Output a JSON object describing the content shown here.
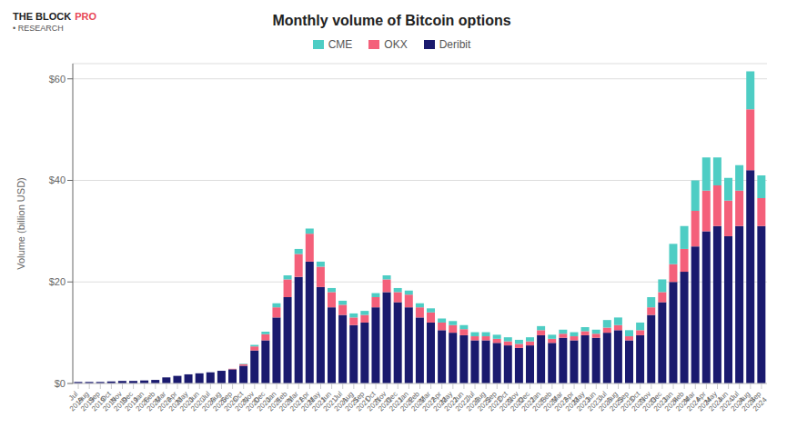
{
  "chart_data": {
    "type": "bar",
    "stacked": true,
    "title": "Monthly volume of Bitcoin options",
    "y_label": "Volume (billion USD)",
    "categories": [
      "Jul\n2019",
      "Aug\n2019",
      "Sep\n2019",
      "Oct\n2019",
      "Nov\n2019",
      "Dec\n2019",
      "Jan\n2020",
      "Feb\n2020",
      "Mar\n2020",
      "Apr\n2020",
      "May\n2020",
      "Jun\n2020",
      "Jul\n2020",
      "Aug\n2020",
      "Sep\n2020",
      "Oct\n2020",
      "Nov\n2020",
      "Dec\n2020",
      "Jan\n2021",
      "Feb\n2021",
      "Mar\n2021",
      "Apr\n2021",
      "May\n2021",
      "Jun\n2021",
      "Jul\n2021",
      "Aug\n2021",
      "Sep\n2021",
      "Oct\n2021",
      "Nov\n2021",
      "Dec\n2021",
      "Jan\n2022",
      "Feb\n2022",
      "Mar\n2022",
      "Apr\n2022",
      "May\n2022",
      "Jun\n2022",
      "Jul\n2022",
      "Aug\n2022",
      "Sep\n2022",
      "Oct\n2022",
      "Nov\n2022",
      "Dec\n2022",
      "Jan\n2023",
      "Feb\n2023",
      "Mar\n2023",
      "Apr\n2023",
      "May\n2023",
      "Jun\n2023",
      "Jul\n2023",
      "Aug\n2023",
      "Sep\n2023",
      "Oct\n2023",
      "Nov\n2023",
      "Dec\n2023",
      "Jan\n2024",
      "Feb\n2024",
      "Mar\n2024",
      "Apr\n2024",
      "May\n2024",
      "Jun\n2024",
      "Jul\n2024",
      "Aug\n2024",
      "Sep\n2024"
    ],
    "series": [
      {
        "name": "Deribit",
        "color": "#1a1a6e",
        "values": [
          0.3,
          0.3,
          0.3,
          0.4,
          0.5,
          0.5,
          0.6,
          0.7,
          1.2,
          1.5,
          1.8,
          2.0,
          2.2,
          2.5,
          2.8,
          3.5,
          6.5,
          8.5,
          13.0,
          17.0,
          21.0,
          24.0,
          19.0,
          15.0,
          13.5,
          11.5,
          12.0,
          15.0,
          18.0,
          16.0,
          15.0,
          13.0,
          12.0,
          10.5,
          10.0,
          9.5,
          8.5,
          8.5,
          8.0,
          7.5,
          7.0,
          7.5,
          9.5,
          8.0,
          9.0,
          8.5,
          9.5,
          9.0,
          10.0,
          10.5,
          8.5,
          9.5,
          13.5,
          16.0,
          20.0,
          22.0,
          27.0,
          30.0,
          31.0,
          29.0,
          31.0,
          42.0,
          31.0
        ]
      },
      {
        "name": "OKX",
        "color": "#f4607a",
        "values": [
          0.0,
          0.0,
          0.0,
          0.0,
          0.0,
          0.0,
          0.0,
          0.0,
          0.0,
          0.0,
          0.0,
          0.0,
          0.0,
          0.0,
          0.1,
          0.3,
          0.8,
          1.2,
          2.0,
          3.5,
          4.5,
          5.5,
          4.0,
          3.0,
          2.0,
          1.5,
          1.5,
          2.0,
          2.5,
          2.0,
          2.5,
          2.0,
          2.0,
          1.5,
          1.5,
          1.2,
          0.8,
          0.8,
          0.8,
          0.8,
          0.8,
          0.8,
          1.0,
          0.8,
          0.8,
          0.8,
          0.8,
          0.8,
          1.0,
          1.0,
          0.8,
          1.0,
          1.5,
          2.0,
          3.5,
          4.5,
          7.0,
          8.0,
          8.0,
          7.0,
          7.0,
          12.0,
          5.5
        ]
      },
      {
        "name": "CME",
        "color": "#4ecdc4",
        "values": [
          0.0,
          0.0,
          0.0,
          0.0,
          0.0,
          0.0,
          0.0,
          0.0,
          0.0,
          0.0,
          0.0,
          0.0,
          0.0,
          0.0,
          0.0,
          0.1,
          0.3,
          0.5,
          0.8,
          0.8,
          1.0,
          1.0,
          1.0,
          0.8,
          0.8,
          0.8,
          0.8,
          0.8,
          0.8,
          0.8,
          0.8,
          0.8,
          0.8,
          0.8,
          0.8,
          0.8,
          0.8,
          0.8,
          0.8,
          0.8,
          0.8,
          0.8,
          0.8,
          0.8,
          0.8,
          0.8,
          0.8,
          0.8,
          1.5,
          1.5,
          1.2,
          1.5,
          2.0,
          2.5,
          4.0,
          4.5,
          6.0,
          6.5,
          5.5,
          4.5,
          5.0,
          7.5,
          4.5
        ]
      }
    ],
    "ylim": [
      0,
      63
    ],
    "yticks": [
      {
        "value": 0,
        "label": "$0"
      },
      {
        "value": 20,
        "label": "$20"
      },
      {
        "value": 40,
        "label": "$40"
      },
      {
        "value": 60,
        "label": "$60"
      }
    ],
    "grid": true,
    "legend": "top",
    "annotations": [
      {
        "text": "THE BLOCK",
        "color": "#222222"
      },
      {
        "text": "PRO",
        "color": "#e84855"
      },
      {
        "text": "• RESEARCH",
        "color": "#555555"
      }
    ]
  }
}
